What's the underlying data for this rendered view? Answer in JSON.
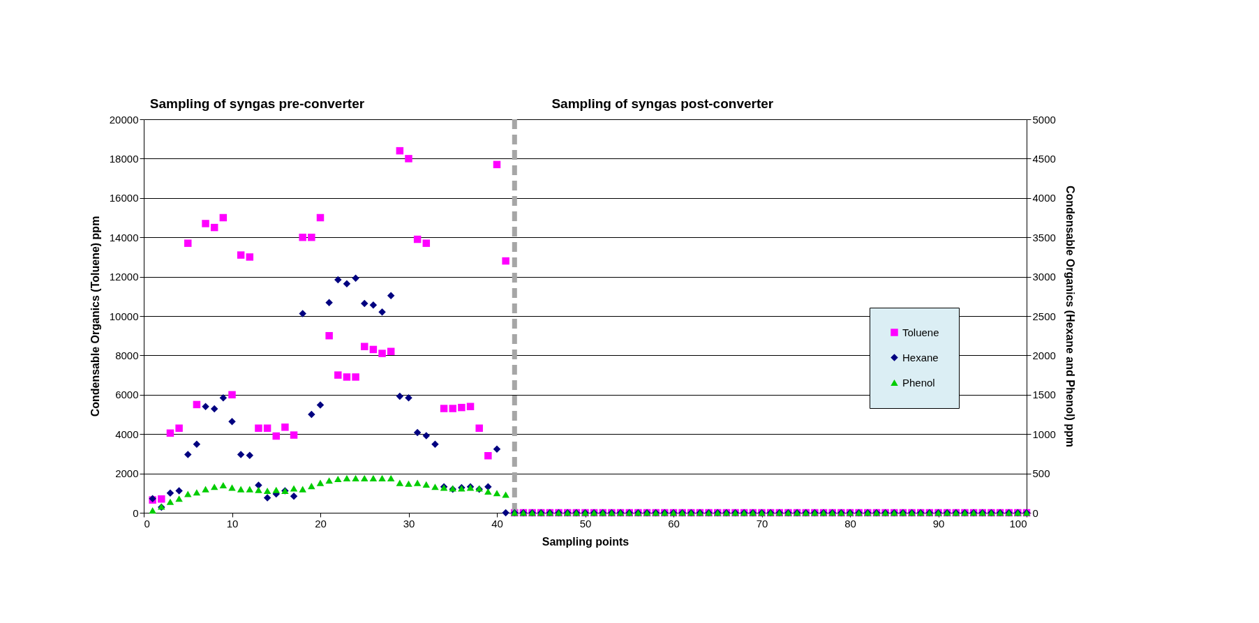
{
  "chart_data": {
    "type": "scatter",
    "xlabel": "Sampling points",
    "ylabel": "Condensable Organics  (Toluene) ppm",
    "y2label": "Condensable Organics  (Hexane  and Phenol) ppm",
    "annotations": [
      "Sampling of syngas pre-converter",
      "Sampling of syngas post-converter"
    ],
    "x": [
      1,
      2,
      3,
      4,
      5,
      6,
      7,
      8,
      9,
      10,
      11,
      12,
      13,
      14,
      15,
      16,
      17,
      18,
      19,
      20,
      21,
      22,
      23,
      24,
      25,
      26,
      27,
      28,
      29,
      30,
      31,
      32,
      33,
      34,
      35,
      36,
      37,
      38,
      39,
      40,
      41,
      42,
      43,
      44,
      45,
      46,
      47,
      48,
      49,
      50,
      51,
      52,
      53,
      54,
      55,
      56,
      57,
      58,
      59,
      60,
      61,
      62,
      63,
      64,
      65,
      66,
      67,
      68,
      69,
      70,
      71,
      72,
      73,
      74,
      75,
      76,
      77,
      78,
      79,
      80,
      81,
      82,
      83,
      84,
      85,
      86,
      87,
      88,
      89,
      90,
      91,
      92,
      93,
      94,
      95,
      96,
      97,
      98,
      99,
      100
    ],
    "series": [
      {
        "name": "Toluene",
        "color": "#ff00ff",
        "marker": "square",
        "values": [
          650,
          700,
          4050,
          4300,
          13700,
          5500,
          14700,
          14500,
          15000,
          6000,
          13100,
          13000,
          4300,
          4300,
          3900,
          4350,
          3950,
          14000,
          14000,
          15000,
          9000,
          7000,
          6900,
          6900,
          8450,
          8300,
          8100,
          8200,
          18400,
          18000,
          13900,
          13700,
          null,
          5300,
          5300,
          5350,
          5400,
          4300,
          2900,
          17700,
          12800,
          0,
          0,
          0,
          0,
          0,
          0,
          0,
          0,
          0,
          0,
          0,
          0,
          0,
          0,
          0,
          0,
          0,
          0,
          0,
          0,
          0,
          0,
          0,
          0,
          0,
          0,
          0,
          0,
          0,
          0,
          0,
          0,
          0,
          0,
          0,
          0,
          0,
          0,
          0,
          0,
          0,
          0,
          0,
          0,
          0,
          0,
          0,
          0,
          0,
          0,
          0,
          0,
          0,
          0,
          0,
          0,
          0,
          0,
          0
        ]
      },
      {
        "name": "Hexane",
        "color": "#000080",
        "marker": "diamond",
        "axis": "y2",
        "values": [
          180,
          70,
          250,
          280,
          740,
          870,
          1350,
          1320,
          1460,
          1160,
          740,
          730,
          350,
          190,
          240,
          280,
          210,
          2530,
          1250,
          1370,
          2670,
          2960,
          2910,
          2980,
          2660,
          2640,
          2550,
          2760,
          1480,
          1460,
          1020,
          980,
          870,
          330,
          300,
          320,
          330,
          300,
          330,
          810,
          0,
          0,
          0,
          0,
          0,
          0,
          0,
          0,
          0,
          0,
          0,
          0,
          0,
          0,
          0,
          0,
          0,
          0,
          0,
          0,
          0,
          0,
          0,
          0,
          0,
          0,
          0,
          0,
          0,
          0,
          0,
          0,
          0,
          0,
          0,
          0,
          0,
          0,
          0,
          0,
          0,
          0,
          0,
          0,
          0,
          0,
          0,
          0,
          0,
          0,
          0,
          0,
          0,
          0,
          0,
          0,
          0,
          0,
          0,
          0
        ]
      },
      {
        "name": "Phenol",
        "color": "#00cc00",
        "marker": "triangle",
        "axis": "y2",
        "values": [
          30,
          80,
          140,
          180,
          240,
          260,
          300,
          330,
          350,
          320,
          300,
          300,
          290,
          280,
          290,
          280,
          310,
          300,
          340,
          380,
          410,
          430,
          440,
          440,
          440,
          440,
          440,
          440,
          380,
          370,
          380,
          360,
          330,
          320,
          310,
          310,
          320,
          310,
          270,
          250,
          230,
          0,
          0,
          0,
          0,
          0,
          0,
          0,
          0,
          0,
          0,
          0,
          0,
          0,
          0,
          0,
          0,
          0,
          0,
          0,
          0,
          0,
          0,
          0,
          0,
          0,
          0,
          0,
          0,
          0,
          0,
          0,
          0,
          0,
          0,
          0,
          0,
          0,
          0,
          0,
          0,
          0,
          0,
          0,
          0,
          0,
          0,
          0,
          0,
          0,
          0,
          0,
          0,
          0,
          0,
          0,
          0,
          0,
          0,
          0
        ]
      }
    ],
    "xlim": [
      0,
      100
    ],
    "xticks": [
      0,
      10,
      20,
      30,
      40,
      50,
      60,
      70,
      80,
      90,
      100
    ],
    "ylim": [
      0,
      20000
    ],
    "yticks": [
      0,
      2000,
      4000,
      6000,
      8000,
      10000,
      12000,
      14000,
      16000,
      18000,
      20000
    ],
    "y2lim": [
      0,
      5000
    ],
    "y2ticks": [
      0,
      500,
      1000,
      1500,
      2000,
      2500,
      3000,
      3500,
      4000,
      4500,
      5000
    ],
    "ref_lines": [
      {
        "axis": "x",
        "value": 42,
        "color": "#a6a6a6",
        "line_style": "dashed"
      }
    ],
    "grid": "y",
    "legend": "right"
  }
}
